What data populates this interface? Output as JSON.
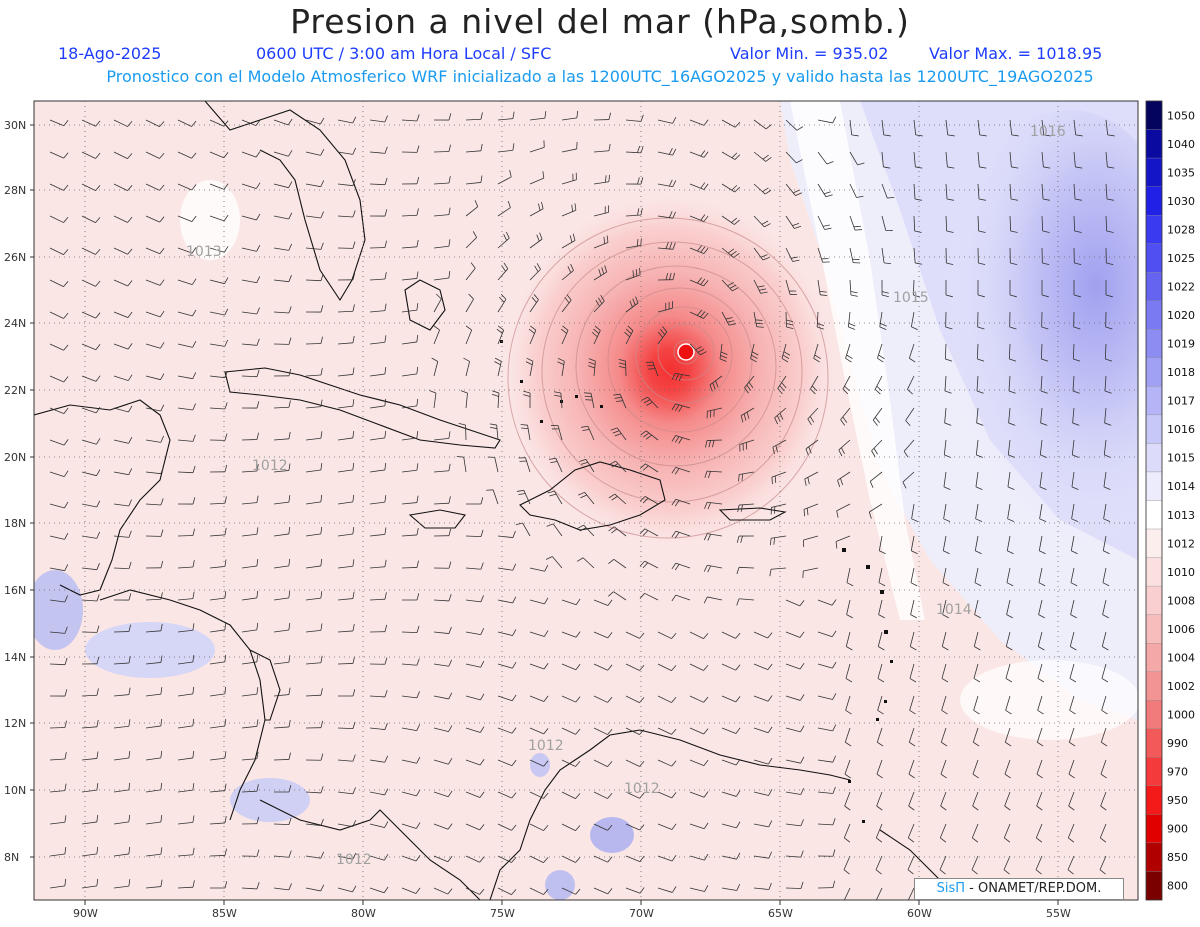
{
  "header": {
    "title": "Presion a nivel del mar (hPa,somb.)",
    "date": "18-Ago-2025",
    "time": "0600 UTC / 3:00 am Hora Local / SFC",
    "min": "Valor Min. = 935.02",
    "max": "Valor Max. = 1018.95",
    "model_info": "Pronostico con el Modelo Atmosferico WRF inicializado a las 1200UTC_16AGO2025 y valido hasta las  1200UTC_19AGO2025"
  },
  "axes": {
    "lat_labels": [
      "30N",
      "28N",
      "26N",
      "24N",
      "22N",
      "20N",
      "18N",
      "16N",
      "14N",
      "12N",
      "10N",
      "8N"
    ],
    "lon_labels": [
      "90W",
      "85W",
      "80W",
      "75W",
      "70W",
      "65W",
      "60W",
      "55W"
    ]
  },
  "contour_labels": [
    "1016",
    "1013",
    "1015",
    "1012",
    "1014",
    "1012",
    "1012",
    "1012"
  ],
  "colorbar": {
    "levels": [
      "1050",
      "1040",
      "1035",
      "1030",
      "1028",
      "1025",
      "1022",
      "1020",
      "1019",
      "1018",
      "1017",
      "1016",
      "1015",
      "1014",
      "1013",
      "1012",
      "1010",
      "1008",
      "1006",
      "1004",
      "1002",
      "1000",
      "990",
      "970",
      "950",
      "900",
      "850",
      "800"
    ],
    "colors": [
      "#04045f",
      "#0a0aa0",
      "#1515c8",
      "#2020e6",
      "#3a3af0",
      "#5050f2",
      "#6464f0",
      "#7a7af2",
      "#8c8cf2",
      "#a0a0f4",
      "#b4b4f6",
      "#c8c8f8",
      "#dcdcfa",
      "#ececfc",
      "#ffffff",
      "#fdeeee",
      "#fbe0e0",
      "#f9cfcf",
      "#f7bcbc",
      "#f5a8a8",
      "#f39494",
      "#f17a7a",
      "#f25a5a",
      "#f43a3a",
      "#f41a1a",
      "#e00000",
      "#b00000",
      "#7a0000"
    ]
  },
  "credit": {
    "brand": "SisΠ",
    "org": "- ONAMET/REP.DOM."
  },
  "colors": {
    "title": "#222222",
    "subtitle": "#1e3cff",
    "model_line": "#1a9bf0"
  }
}
